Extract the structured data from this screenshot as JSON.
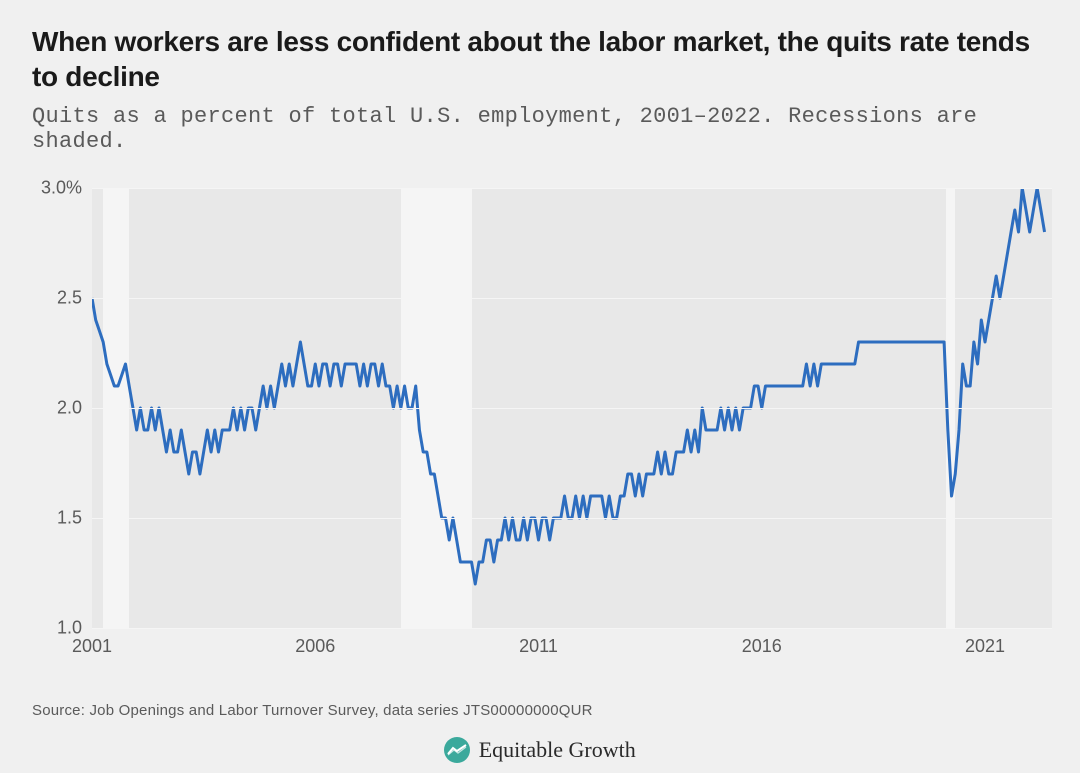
{
  "title": "When workers are less confident about the labor market, the quits rate tends to decline",
  "subtitle": "Quits as a percent of total U.S. employment, 2001–2022. Recessions are shaded.",
  "source": "Source: Job Openings and Labor Turnover Survey, data series JTS00000000QUR",
  "logo_text": "Equitable Growth",
  "chart": {
    "type": "line",
    "x_domain": [
      2001,
      2022.5
    ],
    "y_domain": [
      1.0,
      3.0
    ],
    "y_ticks": [
      1.0,
      1.5,
      2.0,
      2.5,
      3.0
    ],
    "y_tick_labels": [
      "1.0",
      "1.5",
      "2.0",
      "2.5",
      "3.0%"
    ],
    "x_ticks": [
      2001,
      2006,
      2011,
      2016,
      2021
    ],
    "x_tick_labels": [
      "2001",
      "2006",
      "2011",
      "2016",
      "2021"
    ],
    "background_color": "#e8e8e8",
    "page_background_color": "#f0f0f0",
    "grid_color": "#f5f5f5",
    "axis_label_color": "#5a5a5a",
    "axis_label_fontsize": 18,
    "title_color": "#1a1a1a",
    "title_fontsize": 28,
    "subtitle_color": "#5a5a5a",
    "subtitle_fontsize": 22,
    "line_color": "#2d6dbf",
    "line_width": 3,
    "recession_color": "#f5f5f5",
    "recessions": [
      {
        "start": 2001.25,
        "end": 2001.83
      },
      {
        "start": 2007.92,
        "end": 2009.5
      },
      {
        "start": 2020.12,
        "end": 2020.33
      }
    ],
    "series": [
      {
        "x": 2001.0,
        "y": 2.5
      },
      {
        "x": 2001.083,
        "y": 2.4
      },
      {
        "x": 2001.167,
        "y": 2.35
      },
      {
        "x": 2001.25,
        "y": 2.3
      },
      {
        "x": 2001.333,
        "y": 2.2
      },
      {
        "x": 2001.417,
        "y": 2.15
      },
      {
        "x": 2001.5,
        "y": 2.1
      },
      {
        "x": 2001.583,
        "y": 2.1
      },
      {
        "x": 2001.667,
        "y": 2.15
      },
      {
        "x": 2001.75,
        "y": 2.2
      },
      {
        "x": 2001.833,
        "y": 2.1
      },
      {
        "x": 2001.917,
        "y": 2.0
      },
      {
        "x": 2002.0,
        "y": 1.9
      },
      {
        "x": 2002.083,
        "y": 2.0
      },
      {
        "x": 2002.167,
        "y": 1.9
      },
      {
        "x": 2002.25,
        "y": 1.9
      },
      {
        "x": 2002.333,
        "y": 2.0
      },
      {
        "x": 2002.417,
        "y": 1.9
      },
      {
        "x": 2002.5,
        "y": 2.0
      },
      {
        "x": 2002.583,
        "y": 1.9
      },
      {
        "x": 2002.667,
        "y": 1.8
      },
      {
        "x": 2002.75,
        "y": 1.9
      },
      {
        "x": 2002.833,
        "y": 1.8
      },
      {
        "x": 2002.917,
        "y": 1.8
      },
      {
        "x": 2003.0,
        "y": 1.9
      },
      {
        "x": 2003.083,
        "y": 1.8
      },
      {
        "x": 2003.167,
        "y": 1.7
      },
      {
        "x": 2003.25,
        "y": 1.8
      },
      {
        "x": 2003.333,
        "y": 1.8
      },
      {
        "x": 2003.417,
        "y": 1.7
      },
      {
        "x": 2003.5,
        "y": 1.8
      },
      {
        "x": 2003.583,
        "y": 1.9
      },
      {
        "x": 2003.667,
        "y": 1.8
      },
      {
        "x": 2003.75,
        "y": 1.9
      },
      {
        "x": 2003.833,
        "y": 1.8
      },
      {
        "x": 2003.917,
        "y": 1.9
      },
      {
        "x": 2004.0,
        "y": 1.9
      },
      {
        "x": 2004.083,
        "y": 1.9
      },
      {
        "x": 2004.167,
        "y": 2.0
      },
      {
        "x": 2004.25,
        "y": 1.9
      },
      {
        "x": 2004.333,
        "y": 2.0
      },
      {
        "x": 2004.417,
        "y": 1.9
      },
      {
        "x": 2004.5,
        "y": 2.0
      },
      {
        "x": 2004.583,
        "y": 2.0
      },
      {
        "x": 2004.667,
        "y": 1.9
      },
      {
        "x": 2004.75,
        "y": 2.0
      },
      {
        "x": 2004.833,
        "y": 2.1
      },
      {
        "x": 2004.917,
        "y": 2.0
      },
      {
        "x": 2005.0,
        "y": 2.1
      },
      {
        "x": 2005.083,
        "y": 2.0
      },
      {
        "x": 2005.167,
        "y": 2.1
      },
      {
        "x": 2005.25,
        "y": 2.2
      },
      {
        "x": 2005.333,
        "y": 2.1
      },
      {
        "x": 2005.417,
        "y": 2.2
      },
      {
        "x": 2005.5,
        "y": 2.1
      },
      {
        "x": 2005.583,
        "y": 2.2
      },
      {
        "x": 2005.667,
        "y": 2.3
      },
      {
        "x": 2005.75,
        "y": 2.2
      },
      {
        "x": 2005.833,
        "y": 2.1
      },
      {
        "x": 2005.917,
        "y": 2.1
      },
      {
        "x": 2006.0,
        "y": 2.2
      },
      {
        "x": 2006.083,
        "y": 2.1
      },
      {
        "x": 2006.167,
        "y": 2.2
      },
      {
        "x": 2006.25,
        "y": 2.2
      },
      {
        "x": 2006.333,
        "y": 2.1
      },
      {
        "x": 2006.417,
        "y": 2.2
      },
      {
        "x": 2006.5,
        "y": 2.2
      },
      {
        "x": 2006.583,
        "y": 2.1
      },
      {
        "x": 2006.667,
        "y": 2.2
      },
      {
        "x": 2006.75,
        "y": 2.2
      },
      {
        "x": 2006.833,
        "y": 2.2
      },
      {
        "x": 2006.917,
        "y": 2.2
      },
      {
        "x": 2007.0,
        "y": 2.1
      },
      {
        "x": 2007.083,
        "y": 2.2
      },
      {
        "x": 2007.167,
        "y": 2.1
      },
      {
        "x": 2007.25,
        "y": 2.2
      },
      {
        "x": 2007.333,
        "y": 2.2
      },
      {
        "x": 2007.417,
        "y": 2.1
      },
      {
        "x": 2007.5,
        "y": 2.2
      },
      {
        "x": 2007.583,
        "y": 2.1
      },
      {
        "x": 2007.667,
        "y": 2.1
      },
      {
        "x": 2007.75,
        "y": 2.0
      },
      {
        "x": 2007.833,
        "y": 2.1
      },
      {
        "x": 2007.917,
        "y": 2.0
      },
      {
        "x": 2008.0,
        "y": 2.1
      },
      {
        "x": 2008.083,
        "y": 2.0
      },
      {
        "x": 2008.167,
        "y": 2.0
      },
      {
        "x": 2008.25,
        "y": 2.1
      },
      {
        "x": 2008.333,
        "y": 1.9
      },
      {
        "x": 2008.417,
        "y": 1.8
      },
      {
        "x": 2008.5,
        "y": 1.8
      },
      {
        "x": 2008.583,
        "y": 1.7
      },
      {
        "x": 2008.667,
        "y": 1.7
      },
      {
        "x": 2008.75,
        "y": 1.6
      },
      {
        "x": 2008.833,
        "y": 1.5
      },
      {
        "x": 2008.917,
        "y": 1.5
      },
      {
        "x": 2009.0,
        "y": 1.4
      },
      {
        "x": 2009.083,
        "y": 1.5
      },
      {
        "x": 2009.167,
        "y": 1.4
      },
      {
        "x": 2009.25,
        "y": 1.3
      },
      {
        "x": 2009.333,
        "y": 1.3
      },
      {
        "x": 2009.417,
        "y": 1.3
      },
      {
        "x": 2009.5,
        "y": 1.3
      },
      {
        "x": 2009.583,
        "y": 1.2
      },
      {
        "x": 2009.667,
        "y": 1.3
      },
      {
        "x": 2009.75,
        "y": 1.3
      },
      {
        "x": 2009.833,
        "y": 1.4
      },
      {
        "x": 2009.917,
        "y": 1.4
      },
      {
        "x": 2010.0,
        "y": 1.3
      },
      {
        "x": 2010.083,
        "y": 1.4
      },
      {
        "x": 2010.167,
        "y": 1.4
      },
      {
        "x": 2010.25,
        "y": 1.5
      },
      {
        "x": 2010.333,
        "y": 1.4
      },
      {
        "x": 2010.417,
        "y": 1.5
      },
      {
        "x": 2010.5,
        "y": 1.4
      },
      {
        "x": 2010.583,
        "y": 1.4
      },
      {
        "x": 2010.667,
        "y": 1.5
      },
      {
        "x": 2010.75,
        "y": 1.4
      },
      {
        "x": 2010.833,
        "y": 1.5
      },
      {
        "x": 2010.917,
        "y": 1.5
      },
      {
        "x": 2011.0,
        "y": 1.4
      },
      {
        "x": 2011.083,
        "y": 1.5
      },
      {
        "x": 2011.167,
        "y": 1.5
      },
      {
        "x": 2011.25,
        "y": 1.4
      },
      {
        "x": 2011.333,
        "y": 1.5
      },
      {
        "x": 2011.417,
        "y": 1.5
      },
      {
        "x": 2011.5,
        "y": 1.5
      },
      {
        "x": 2011.583,
        "y": 1.6
      },
      {
        "x": 2011.667,
        "y": 1.5
      },
      {
        "x": 2011.75,
        "y": 1.5
      },
      {
        "x": 2011.833,
        "y": 1.6
      },
      {
        "x": 2011.917,
        "y": 1.5
      },
      {
        "x": 2012.0,
        "y": 1.6
      },
      {
        "x": 2012.083,
        "y": 1.5
      },
      {
        "x": 2012.167,
        "y": 1.6
      },
      {
        "x": 2012.25,
        "y": 1.6
      },
      {
        "x": 2012.333,
        "y": 1.6
      },
      {
        "x": 2012.417,
        "y": 1.6
      },
      {
        "x": 2012.5,
        "y": 1.5
      },
      {
        "x": 2012.583,
        "y": 1.6
      },
      {
        "x": 2012.667,
        "y": 1.5
      },
      {
        "x": 2012.75,
        "y": 1.5
      },
      {
        "x": 2012.833,
        "y": 1.6
      },
      {
        "x": 2012.917,
        "y": 1.6
      },
      {
        "x": 2013.0,
        "y": 1.7
      },
      {
        "x": 2013.083,
        "y": 1.7
      },
      {
        "x": 2013.167,
        "y": 1.6
      },
      {
        "x": 2013.25,
        "y": 1.7
      },
      {
        "x": 2013.333,
        "y": 1.6
      },
      {
        "x": 2013.417,
        "y": 1.7
      },
      {
        "x": 2013.5,
        "y": 1.7
      },
      {
        "x": 2013.583,
        "y": 1.7
      },
      {
        "x": 2013.667,
        "y": 1.8
      },
      {
        "x": 2013.75,
        "y": 1.7
      },
      {
        "x": 2013.833,
        "y": 1.8
      },
      {
        "x": 2013.917,
        "y": 1.7
      },
      {
        "x": 2014.0,
        "y": 1.7
      },
      {
        "x": 2014.083,
        "y": 1.8
      },
      {
        "x": 2014.167,
        "y": 1.8
      },
      {
        "x": 2014.25,
        "y": 1.8
      },
      {
        "x": 2014.333,
        "y": 1.9
      },
      {
        "x": 2014.417,
        "y": 1.8
      },
      {
        "x": 2014.5,
        "y": 1.9
      },
      {
        "x": 2014.583,
        "y": 1.8
      },
      {
        "x": 2014.667,
        "y": 2.0
      },
      {
        "x": 2014.75,
        "y": 1.9
      },
      {
        "x": 2014.833,
        "y": 1.9
      },
      {
        "x": 2014.917,
        "y": 1.9
      },
      {
        "x": 2015.0,
        "y": 1.9
      },
      {
        "x": 2015.083,
        "y": 2.0
      },
      {
        "x": 2015.167,
        "y": 1.9
      },
      {
        "x": 2015.25,
        "y": 2.0
      },
      {
        "x": 2015.333,
        "y": 1.9
      },
      {
        "x": 2015.417,
        "y": 2.0
      },
      {
        "x": 2015.5,
        "y": 1.9
      },
      {
        "x": 2015.583,
        "y": 2.0
      },
      {
        "x": 2015.667,
        "y": 2.0
      },
      {
        "x": 2015.75,
        "y": 2.0
      },
      {
        "x": 2015.833,
        "y": 2.1
      },
      {
        "x": 2015.917,
        "y": 2.1
      },
      {
        "x": 2016.0,
        "y": 2.0
      },
      {
        "x": 2016.083,
        "y": 2.1
      },
      {
        "x": 2016.167,
        "y": 2.1
      },
      {
        "x": 2016.25,
        "y": 2.1
      },
      {
        "x": 2016.333,
        "y": 2.1
      },
      {
        "x": 2016.417,
        "y": 2.1
      },
      {
        "x": 2016.5,
        "y": 2.1
      },
      {
        "x": 2016.583,
        "y": 2.1
      },
      {
        "x": 2016.667,
        "y": 2.1
      },
      {
        "x": 2016.75,
        "y": 2.1
      },
      {
        "x": 2016.833,
        "y": 2.1
      },
      {
        "x": 2016.917,
        "y": 2.1
      },
      {
        "x": 2017.0,
        "y": 2.2
      },
      {
        "x": 2017.083,
        "y": 2.1
      },
      {
        "x": 2017.167,
        "y": 2.2
      },
      {
        "x": 2017.25,
        "y": 2.1
      },
      {
        "x": 2017.333,
        "y": 2.2
      },
      {
        "x": 2017.417,
        "y": 2.2
      },
      {
        "x": 2017.5,
        "y": 2.2
      },
      {
        "x": 2017.583,
        "y": 2.2
      },
      {
        "x": 2017.667,
        "y": 2.2
      },
      {
        "x": 2017.75,
        "y": 2.2
      },
      {
        "x": 2017.833,
        "y": 2.2
      },
      {
        "x": 2017.917,
        "y": 2.2
      },
      {
        "x": 2018.0,
        "y": 2.2
      },
      {
        "x": 2018.083,
        "y": 2.2
      },
      {
        "x": 2018.167,
        "y": 2.3
      },
      {
        "x": 2018.25,
        "y": 2.3
      },
      {
        "x": 2018.333,
        "y": 2.3
      },
      {
        "x": 2018.417,
        "y": 2.3
      },
      {
        "x": 2018.5,
        "y": 2.3
      },
      {
        "x": 2018.583,
        "y": 2.3
      },
      {
        "x": 2018.667,
        "y": 2.3
      },
      {
        "x": 2018.75,
        "y": 2.3
      },
      {
        "x": 2018.833,
        "y": 2.3
      },
      {
        "x": 2018.917,
        "y": 2.3
      },
      {
        "x": 2019.0,
        "y": 2.3
      },
      {
        "x": 2019.083,
        "y": 2.3
      },
      {
        "x": 2019.167,
        "y": 2.3
      },
      {
        "x": 2019.25,
        "y": 2.3
      },
      {
        "x": 2019.333,
        "y": 2.3
      },
      {
        "x": 2019.417,
        "y": 2.3
      },
      {
        "x": 2019.5,
        "y": 2.3
      },
      {
        "x": 2019.583,
        "y": 2.3
      },
      {
        "x": 2019.667,
        "y": 2.3
      },
      {
        "x": 2019.75,
        "y": 2.3
      },
      {
        "x": 2019.833,
        "y": 2.3
      },
      {
        "x": 2019.917,
        "y": 2.3
      },
      {
        "x": 2020.0,
        "y": 2.3
      },
      {
        "x": 2020.083,
        "y": 2.3
      },
      {
        "x": 2020.167,
        "y": 1.9
      },
      {
        "x": 2020.25,
        "y": 1.6
      },
      {
        "x": 2020.333,
        "y": 1.7
      },
      {
        "x": 2020.417,
        "y": 1.9
      },
      {
        "x": 2020.5,
        "y": 2.2
      },
      {
        "x": 2020.583,
        "y": 2.1
      },
      {
        "x": 2020.667,
        "y": 2.1
      },
      {
        "x": 2020.75,
        "y": 2.3
      },
      {
        "x": 2020.833,
        "y": 2.2
      },
      {
        "x": 2020.917,
        "y": 2.4
      },
      {
        "x": 2021.0,
        "y": 2.3
      },
      {
        "x": 2021.083,
        "y": 2.4
      },
      {
        "x": 2021.167,
        "y": 2.5
      },
      {
        "x": 2021.25,
        "y": 2.6
      },
      {
        "x": 2021.333,
        "y": 2.5
      },
      {
        "x": 2021.417,
        "y": 2.6
      },
      {
        "x": 2021.5,
        "y": 2.7
      },
      {
        "x": 2021.583,
        "y": 2.8
      },
      {
        "x": 2021.667,
        "y": 2.9
      },
      {
        "x": 2021.75,
        "y": 2.8
      },
      {
        "x": 2021.833,
        "y": 3.0
      },
      {
        "x": 2021.917,
        "y": 2.9
      },
      {
        "x": 2022.0,
        "y": 2.8
      },
      {
        "x": 2022.083,
        "y": 2.9
      },
      {
        "x": 2022.167,
        "y": 3.0
      },
      {
        "x": 2022.25,
        "y": 2.9
      },
      {
        "x": 2022.333,
        "y": 2.8
      }
    ]
  }
}
